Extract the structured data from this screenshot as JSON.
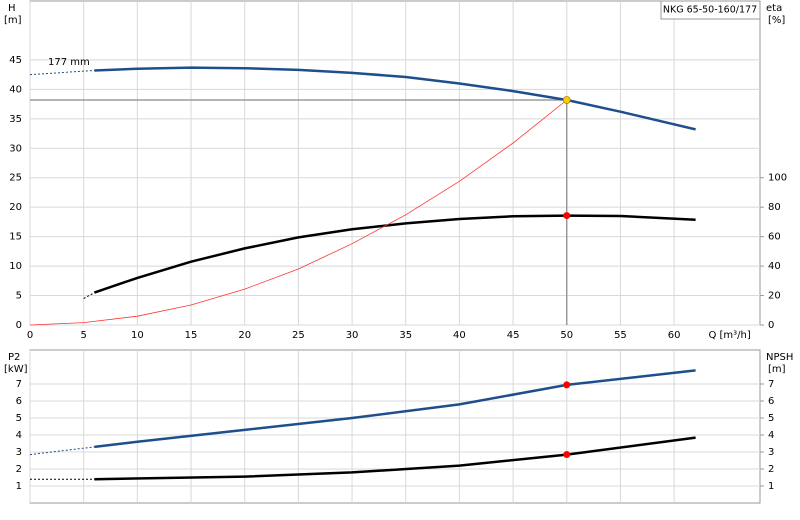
{
  "chart_data": [
    {
      "type": "line",
      "title": "NKG 65-50-160/177",
      "annotation": "177 mm",
      "ylabel": "H",
      "yunit": "[m]",
      "y2label": "eta",
      "y2unit": "[%]",
      "xlabel": "Q [m³/h]",
      "xlim": [
        0,
        68
      ],
      "xticks": [
        0,
        5,
        10,
        15,
        20,
        25,
        30,
        35,
        40,
        45,
        50,
        55,
        60
      ],
      "ylim": [
        0,
        55
      ],
      "yticks": [
        0,
        5,
        10,
        15,
        20,
        25,
        30,
        35,
        40,
        45
      ],
      "y2lim": [
        0,
        220
      ],
      "y2ticks": [
        0,
        20,
        40,
        60,
        80,
        100
      ],
      "grid": true,
      "crosshair": {
        "x": 50,
        "y": 38.2
      },
      "series": [
        {
          "color": "#1f4e8c",
          "style": "dashed",
          "x": [
            0,
            6
          ],
          "values": [
            42.5,
            43.2
          ]
        },
        {
          "color": "#1f4e8c",
          "style": "solid",
          "x": [
            6,
            10,
            15,
            20,
            25,
            30,
            35,
            40,
            45,
            50,
            55,
            62
          ],
          "values": [
            43.2,
            43.5,
            43.7,
            43.6,
            43.3,
            42.8,
            42.1,
            41.0,
            39.7,
            38.2,
            36.2,
            33.2
          ]
        },
        {
          "color": "#000000",
          "style": "dashed",
          "axis": "y2",
          "x": [
            5,
            6
          ],
          "values": [
            18,
            22
          ]
        },
        {
          "color": "#000000",
          "style": "solid",
          "axis": "y2",
          "x": [
            6,
            10,
            15,
            20,
            25,
            30,
            35,
            40,
            45,
            50,
            55,
            62
          ],
          "values": [
            22,
            32,
            43,
            52,
            59.5,
            65,
            69,
            72,
            73.8,
            74.3,
            74,
            71.5
          ]
        },
        {
          "color": "#ff3333",
          "style": "thin",
          "x": [
            0,
            5,
            10,
            15,
            20,
            25,
            30,
            35,
            40,
            45,
            50
          ],
          "values": [
            0,
            0.4,
            1.5,
            3.4,
            6.1,
            9.5,
            13.8,
            18.7,
            24.4,
            30.9,
            38.2
          ]
        }
      ],
      "points": [
        {
          "x": 50,
          "y": 38.2,
          "color": "#ffcc00"
        },
        {
          "x": 50,
          "y": 74.3,
          "color": "#ff0000",
          "axis": "y2"
        }
      ]
    },
    {
      "type": "line",
      "ylabel": "P2",
      "yunit": "[kW]",
      "y2label": "NPSH",
      "y2unit": "[m]",
      "xlim": [
        0,
        68
      ],
      "xticks": [
        0,
        5,
        10,
        15,
        20,
        25,
        30,
        35,
        40,
        45,
        50,
        55,
        60
      ],
      "xtick_labels": false,
      "ylim": [
        0,
        9
      ],
      "yticks": [
        1,
        2,
        3,
        4,
        5,
        6,
        7
      ],
      "y2lim": [
        0,
        9
      ],
      "y2ticks": [
        1,
        2,
        3,
        4,
        5,
        6,
        7
      ],
      "grid": true,
      "series": [
        {
          "color": "#1f4e8c",
          "style": "dashed",
          "x": [
            0,
            6
          ],
          "values": [
            2.85,
            3.3
          ]
        },
        {
          "color": "#1f4e8c",
          "style": "solid",
          "x": [
            6,
            10,
            20,
            30,
            40,
            50,
            62
          ],
          "values": [
            3.3,
            3.6,
            4.3,
            5.0,
            5.8,
            6.95,
            7.8
          ]
        },
        {
          "color": "#000000",
          "style": "dashed",
          "axis": "y2",
          "x": [
            0,
            6
          ],
          "values": [
            1.4,
            1.4
          ]
        },
        {
          "color": "#000000",
          "style": "solid",
          "axis": "y2",
          "x": [
            6,
            20,
            30,
            40,
            50,
            62
          ],
          "values": [
            1.4,
            1.55,
            1.8,
            2.2,
            2.85,
            3.85
          ]
        }
      ],
      "points": [
        {
          "x": 50,
          "y": 6.95,
          "color": "#ff0000"
        },
        {
          "x": 50,
          "y": 2.85,
          "color": "#ff0000",
          "axis": "y2"
        }
      ]
    }
  ]
}
